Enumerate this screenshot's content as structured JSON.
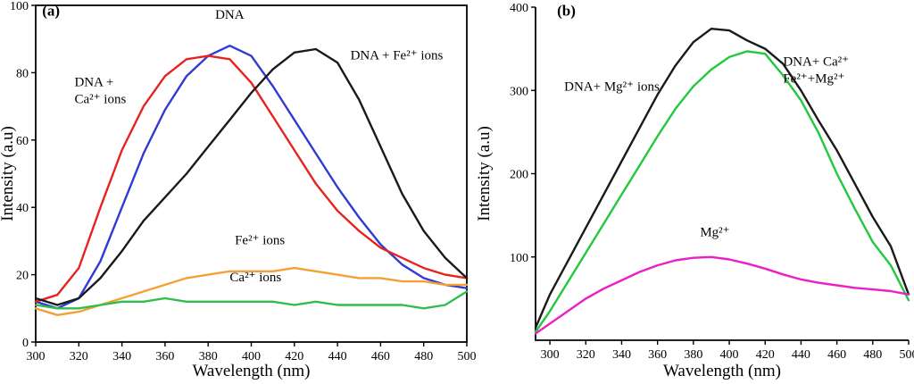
{
  "figure": {
    "panel_letters": [
      "(a)",
      "(b)"
    ]
  },
  "chart_data": [
    {
      "type": "line",
      "panel_label": "(a)",
      "xlabel": "Wavelength (nm)",
      "ylabel": "Intensity (a.u)",
      "xlim": [
        300,
        500
      ],
      "ylim": [
        0,
        100
      ],
      "xticks": [
        300,
        320,
        340,
        360,
        380,
        400,
        420,
        440,
        460,
        480,
        500
      ],
      "yticks": [
        0,
        20,
        40,
        60,
        80,
        100
      ],
      "frame": "box",
      "grid": false,
      "legend": "none",
      "x": [
        300,
        310,
        320,
        330,
        340,
        350,
        360,
        370,
        380,
        390,
        400,
        410,
        420,
        430,
        440,
        450,
        460,
        470,
        480,
        490,
        500
      ],
      "series": [
        {
          "id": "dna",
          "name": "DNA",
          "color": "#2f3bd3",
          "values": [
            12,
            10,
            13,
            24,
            40,
            56,
            69,
            79,
            85,
            88,
            85,
            76,
            66,
            56,
            46,
            37,
            29,
            23,
            19,
            17,
            16
          ]
        },
        {
          "id": "dna-ca",
          "name": "DNA + Ca²⁺ ions",
          "color": "#e8231e",
          "values": [
            12,
            14,
            22,
            40,
            57,
            70,
            79,
            84,
            85,
            84,
            77,
            67,
            57,
            47,
            39,
            33,
            28,
            25,
            22,
            20,
            19
          ]
        },
        {
          "id": "dna-fe",
          "name": "DNA + Fe²⁺ ions",
          "color": "#1a1a1a",
          "values": [
            13,
            11,
            13,
            19,
            27,
            36,
            43,
            50,
            58,
            66,
            74,
            81,
            86,
            87,
            83,
            72,
            58,
            44,
            33,
            25,
            19
          ]
        },
        {
          "id": "fe",
          "name": "Fe²⁺ ions",
          "color": "#f5a033",
          "values": [
            10,
            8,
            9,
            11,
            13,
            15,
            17,
            19,
            20,
            21,
            21,
            21,
            22,
            21,
            20,
            19,
            19,
            18,
            18,
            17,
            17
          ]
        },
        {
          "id": "ca",
          "name": "Ca²⁺ ions",
          "color": "#2ebd4e",
          "values": [
            11,
            10,
            10,
            11,
            12,
            12,
            13,
            12,
            12,
            12,
            12,
            12,
            11,
            12,
            11,
            11,
            11,
            11,
            10,
            11,
            15
          ]
        }
      ],
      "annotations": [
        {
          "id": "panel-letter-a",
          "lines": [
            "(a)"
          ],
          "x": 303,
          "y": 97,
          "bold": true,
          "anchor": "start"
        },
        {
          "id": "label-dna",
          "lines": [
            "DNA"
          ],
          "x": 390,
          "y": 96,
          "anchor": "middle"
        },
        {
          "id": "label-dna-ca",
          "lines": [
            "DNA +",
            "Ca²⁺ ions"
          ],
          "x": 318,
          "y": 76,
          "anchor": "start"
        },
        {
          "id": "label-dna-fe",
          "lines": [
            "DNA + Fe²⁺ ions"
          ],
          "x": 446,
          "y": 84,
          "anchor": "start"
        },
        {
          "id": "label-fe",
          "lines": [
            "Fe²⁺ ions"
          ],
          "x": 404,
          "y": 29,
          "anchor": "middle"
        },
        {
          "id": "label-ca",
          "lines": [
            "Ca²⁺ ions"
          ],
          "x": 402,
          "y": 18,
          "anchor": "middle"
        }
      ]
    },
    {
      "type": "line",
      "panel_label": "(b)",
      "xlabel": "Wavelength (nm)",
      "ylabel": "Intensity (a.u)",
      "xlim": [
        292,
        500
      ],
      "ylim": [
        0,
        400
      ],
      "xticks": [
        300,
        320,
        340,
        360,
        380,
        400,
        420,
        440,
        460,
        480,
        500
      ],
      "yticks": [
        100,
        200,
        300,
        400
      ],
      "frame": "lb",
      "grid": false,
      "legend": "none",
      "x": [
        292,
        300,
        310,
        320,
        330,
        340,
        350,
        360,
        370,
        380,
        390,
        400,
        410,
        420,
        430,
        440,
        450,
        460,
        470,
        480,
        490,
        500
      ],
      "series": [
        {
          "id": "dna-mg",
          "name": "DNA+ Mg²⁺ ions",
          "color": "#1a1a1a",
          "values": [
            15,
            55,
            95,
            135,
            175,
            215,
            255,
            295,
            330,
            358,
            374,
            372,
            360,
            350,
            332,
            300,
            263,
            228,
            188,
            148,
            113,
            55
          ]
        },
        {
          "id": "dna-ca-fe-mg",
          "name": "DNA+ Ca²⁺ Fe²⁺+Mg²⁺",
          "color": "#22c93e",
          "values": [
            10,
            35,
            70,
            105,
            140,
            175,
            210,
            245,
            278,
            305,
            325,
            340,
            347,
            344,
            318,
            288,
            248,
            200,
            158,
            118,
            90,
            48
          ]
        },
        {
          "id": "mg",
          "name": "Mg²⁺",
          "color": "#ea1fc8",
          "values": [
            8,
            20,
            35,
            50,
            62,
            72,
            82,
            90,
            96,
            99,
            100,
            97,
            92,
            86,
            79,
            73,
            69,
            66,
            63,
            61,
            59,
            55
          ]
        }
      ],
      "annotations": [
        {
          "id": "panel-letter-b",
          "lines": [
            "(b)"
          ],
          "x": 304,
          "y": 390,
          "bold": true,
          "anchor": "start"
        },
        {
          "id": "label-dna-mg",
          "lines": [
            "DNA+ Mg²⁺ ions"
          ],
          "x": 308,
          "y": 300,
          "anchor": "start"
        },
        {
          "id": "label-dna-ca-fe-mg",
          "lines": [
            "DNA+ Ca²⁺",
            "Fe²⁺+Mg²⁺"
          ],
          "x": 430,
          "y": 330,
          "anchor": "start"
        },
        {
          "id": "label-mg",
          "lines": [
            "Mg²⁺"
          ],
          "x": 392,
          "y": 125,
          "anchor": "middle"
        }
      ]
    }
  ]
}
